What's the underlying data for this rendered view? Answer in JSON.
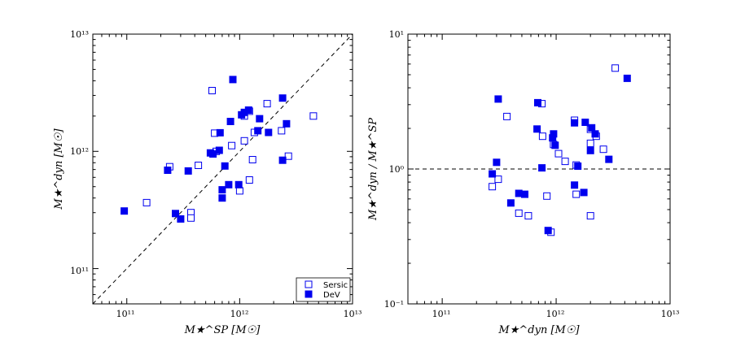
{
  "colors": {
    "marker": "#0000ee",
    "axis": "#000000"
  },
  "chart_data": [
    {
      "type": "scatter",
      "scale": "log-log",
      "xlabel": "M★^SP [M☉]",
      "ylabel": "M★^dyn [M☉]",
      "xlim": [
        50000000000.0,
        10000000000000.0
      ],
      "ylim": [
        50000000000.0,
        10000000000000.0
      ],
      "xticks": [
        {
          "value": 100000000000.0,
          "label": "10¹¹"
        },
        {
          "value": 1000000000000.0,
          "label": "10¹²"
        },
        {
          "value": 10000000000000.0,
          "label": "10¹³"
        }
      ],
      "yticks": [
        {
          "value": 100000000000.0,
          "label": "10¹¹"
        },
        {
          "value": 1000000000000.0,
          "label": "10¹²"
        },
        {
          "value": 10000000000000.0,
          "label": "10¹³"
        }
      ],
      "reference_line": "y = x (dashed)",
      "legend": {
        "location": "lower right",
        "entries": [
          "Sersic",
          "DeV"
        ]
      },
      "series": [
        {
          "name": "Sersic",
          "marker": "open-square",
          "points": [
            [
              150000000000.0,
              365000000000.0
            ],
            [
              240000000000.0,
              740000000000.0
            ],
            [
              370000000000.0,
              300000000000.0
            ],
            [
              370000000000.0,
              270000000000.0
            ],
            [
              430000000000.0,
              760000000000.0
            ],
            [
              570000000000.0,
              3300000000000.0
            ],
            [
              600000000000.0,
              1430000000000.0
            ],
            [
              620000000000.0,
              1000000000000.0
            ],
            [
              850000000000.0,
              1120000000000.0
            ],
            [
              1000000000000.0,
              460000000000.0
            ],
            [
              1100000000000.0,
              1230000000000.0
            ],
            [
              1100000000000.0,
              2000000000000.0
            ],
            [
              1220000000000.0,
              570000000000.0
            ],
            [
              1220000000000.0,
              2200000000000.0
            ],
            [
              1300000000000.0,
              850000000000.0
            ],
            [
              1350000000000.0,
              1450000000000.0
            ],
            [
              1750000000000.0,
              2550000000000.0
            ],
            [
              2350000000000.0,
              1500000000000.0
            ],
            [
              2700000000000.0,
              910000000000.0
            ],
            [
              4500000000000.0,
              2000000000000.0
            ]
          ]
        },
        {
          "name": "DeV",
          "marker": "filled-square",
          "points": [
            [
              95000000000.0,
              310000000000.0
            ],
            [
              230000000000.0,
              690000000000.0
            ],
            [
              270000000000.0,
              295000000000.0
            ],
            [
              300000000000.0,
              265000000000.0
            ],
            [
              350000000000.0,
              680000000000.0
            ],
            [
              550000000000.0,
              970000000000.0
            ],
            [
              580000000000.0,
              950000000000.0
            ],
            [
              660000000000.0,
              1020000000000.0
            ],
            [
              670000000000.0,
              1440000000000.0
            ],
            [
              700000000000.0,
              470000000000.0
            ],
            [
              700000000000.0,
              400000000000.0
            ],
            [
              740000000000.0,
              750000000000.0
            ],
            [
              800000000000.0,
              520000000000.0
            ],
            [
              830000000000.0,
              1800000000000.0
            ],
            [
              870000000000.0,
              4100000000000.0
            ],
            [
              980000000000.0,
              520000000000.0
            ],
            [
              1040000000000.0,
              2050000000000.0
            ],
            [
              1100000000000.0,
              2150000000000.0
            ],
            [
              1200000000000.0,
              2250000000000.0
            ],
            [
              1450000000000.0,
              1500000000000.0
            ],
            [
              1500000000000.0,
              1900000000000.0
            ],
            [
              1800000000000.0,
              1450000000000.0
            ],
            [
              2400000000000.0,
              840000000000.0
            ],
            [
              2400000000000.0,
              2850000000000.0
            ],
            [
              2600000000000.0,
              1720000000000.0
            ]
          ]
        }
      ]
    },
    {
      "type": "scatter",
      "scale": "log-log",
      "xlabel": "M★^dyn [M☉]",
      "ylabel": "M★^dyn / M★^SP",
      "xlim": [
        50000000000.0,
        10000000000000.0
      ],
      "ylim": [
        0.1,
        10
      ],
      "xticks": [
        {
          "value": 100000000000.0,
          "label": "10¹¹"
        },
        {
          "value": 1000000000000.0,
          "label": "10¹²"
        },
        {
          "value": 10000000000000.0,
          "label": "10¹³"
        }
      ],
      "yticks": [
        {
          "value": 0.1,
          "label": "10⁻¹"
        },
        {
          "value": 1,
          "label": "10⁰"
        },
        {
          "value": 10,
          "label": "10¹"
        }
      ],
      "reference_line": "y = 1 (dashed)",
      "series": [
        {
          "name": "Sersic",
          "marker": "open-square",
          "points": [
            [
              275000000000.0,
              0.74
            ],
            [
              310000000000.0,
              0.84
            ],
            [
              370000000000.0,
              2.45
            ],
            [
              470000000000.0,
              0.47
            ],
            [
              570000000000.0,
              0.45
            ],
            [
              750000000000.0,
              3.05
            ],
            [
              760000000000.0,
              1.75
            ],
            [
              830000000000.0,
              0.63
            ],
            [
              900000000000.0,
              0.34
            ],
            [
              950000000000.0,
              1.52
            ],
            [
              1050000000000.0,
              1.3
            ],
            [
              1200000000000.0,
              1.14
            ],
            [
              1450000000000.0,
              2.3
            ],
            [
              1500000000000.0,
              0.65
            ],
            [
              1500000000000.0,
              1.07
            ],
            [
              2000000000000.0,
              1.97
            ],
            [
              2000000000000.0,
              1.55
            ],
            [
              2000000000000.0,
              0.45
            ],
            [
              2250000000000.0,
              1.75
            ],
            [
              2600000000000.0,
              1.4
            ],
            [
              3300000000000.0,
              5.6
            ]
          ]
        },
        {
          "name": "DeV",
          "marker": "filled-square",
          "points": [
            [
              275000000000.0,
              0.92
            ],
            [
              300000000000.0,
              1.12
            ],
            [
              310000000000.0,
              3.3
            ],
            [
              400000000000.0,
              0.56
            ],
            [
              470000000000.0,
              0.66
            ],
            [
              530000000000.0,
              0.65
            ],
            [
              680000000000.0,
              1.98
            ],
            [
              690000000000.0,
              3.1
            ],
            [
              750000000000.0,
              1.02
            ],
            [
              850000000000.0,
              0.35
            ],
            [
              930000000000.0,
              1.7
            ],
            [
              950000000000.0,
              1.82
            ],
            [
              980000000000.0,
              1.5
            ],
            [
              1450000000000.0,
              0.76
            ],
            [
              1450000000000.0,
              2.2
            ],
            [
              1550000000000.0,
              1.05
            ],
            [
              1750000000000.0,
              0.67
            ],
            [
              1800000000000.0,
              2.22
            ],
            [
              2000000000000.0,
              1.37
            ],
            [
              2050000000000.0,
              2.02
            ],
            [
              2200000000000.0,
              1.82
            ],
            [
              2900000000000.0,
              1.18
            ],
            [
              4200000000000.0,
              4.7
            ]
          ]
        }
      ]
    }
  ]
}
